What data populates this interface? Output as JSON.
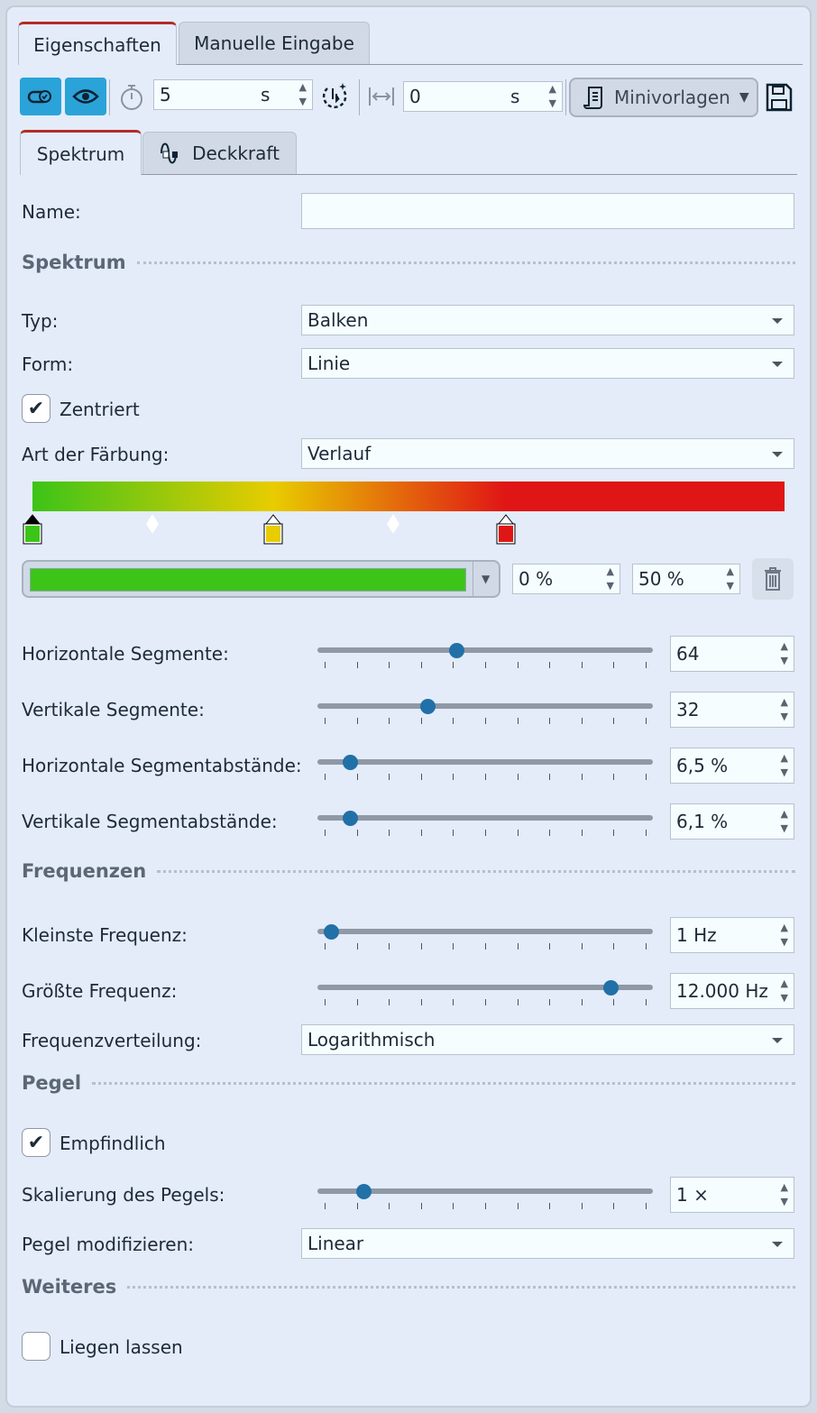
{
  "tabs": [
    {
      "label": "Eigenschaften",
      "active": true
    },
    {
      "label": "Manuelle Eingabe",
      "active": false
    }
  ],
  "toolbar": {
    "duration_value": "5",
    "duration_unit": "s",
    "offset_value": "0",
    "offset_unit": "s",
    "minivorlagen_label": "Minivorlagen",
    "icons": [
      "link-toggle-icon",
      "eye-icon",
      "stopwatch-icon",
      "animation-timing-icon",
      "width-arrows-icon",
      "scroll-template-icon",
      "save-icon"
    ]
  },
  "subtabs": [
    {
      "label": "Spektrum",
      "active": true
    },
    {
      "label": "Deckkraft",
      "active": false,
      "icon": "opacity-curve-icon"
    }
  ],
  "name": {
    "label": "Name:",
    "value": ""
  },
  "sections": {
    "spektrum": "Spektrum",
    "frequenzen": "Frequenzen",
    "pegel": "Pegel",
    "weiteres": "Weiteres"
  },
  "typ": {
    "label": "Typ:",
    "value": "Balken"
  },
  "form": {
    "label": "Form:",
    "value": "Linie"
  },
  "zentriert": {
    "label": "Zentriert",
    "checked": true
  },
  "faerbung": {
    "label": "Art der Färbung:",
    "value": "Verlauf"
  },
  "gradient": {
    "stops": [
      {
        "pos": 0,
        "color": "#3cc418",
        "selected": true
      },
      {
        "pos": 32,
        "color": "#e8cc00"
      },
      {
        "pos": 63,
        "color": "#e01515"
      }
    ],
    "midpoints": [
      16,
      48
    ],
    "selected_color": "#3cc418",
    "position_value": "0 %",
    "blend_value": "50 %"
  },
  "sliders": [
    {
      "label": "Horizontale Segmente:",
      "value": "64",
      "level": 0.41
    },
    {
      "label": "Vertikale Segmente:",
      "value": "32",
      "level": 0.32
    },
    {
      "label": "Horizontale Segmentabstände:",
      "value": "6,5 %",
      "level": 0.08
    },
    {
      "label": "Vertikale Segmentabstände:",
      "value": "6,1 %",
      "level": 0.08
    },
    {
      "label": "Kleinste Frequenz:",
      "value": "1 Hz",
      "level": 0.02
    },
    {
      "label": "Größte Frequenz:",
      "value": "12.000 Hz",
      "level": 0.89
    },
    {
      "label": "Skalierung des Pegels:",
      "value": "1 ×",
      "level": 0.12
    }
  ],
  "frequenzverteilung": {
    "label": "Frequenzverteilung:",
    "value": "Logarithmisch"
  },
  "empfindlich": {
    "label": "Empfindlich",
    "checked": true
  },
  "pegel_mod": {
    "label": "Pegel modifizieren:",
    "value": "Linear"
  },
  "liegen": {
    "label": "Liegen lassen",
    "checked": false
  }
}
